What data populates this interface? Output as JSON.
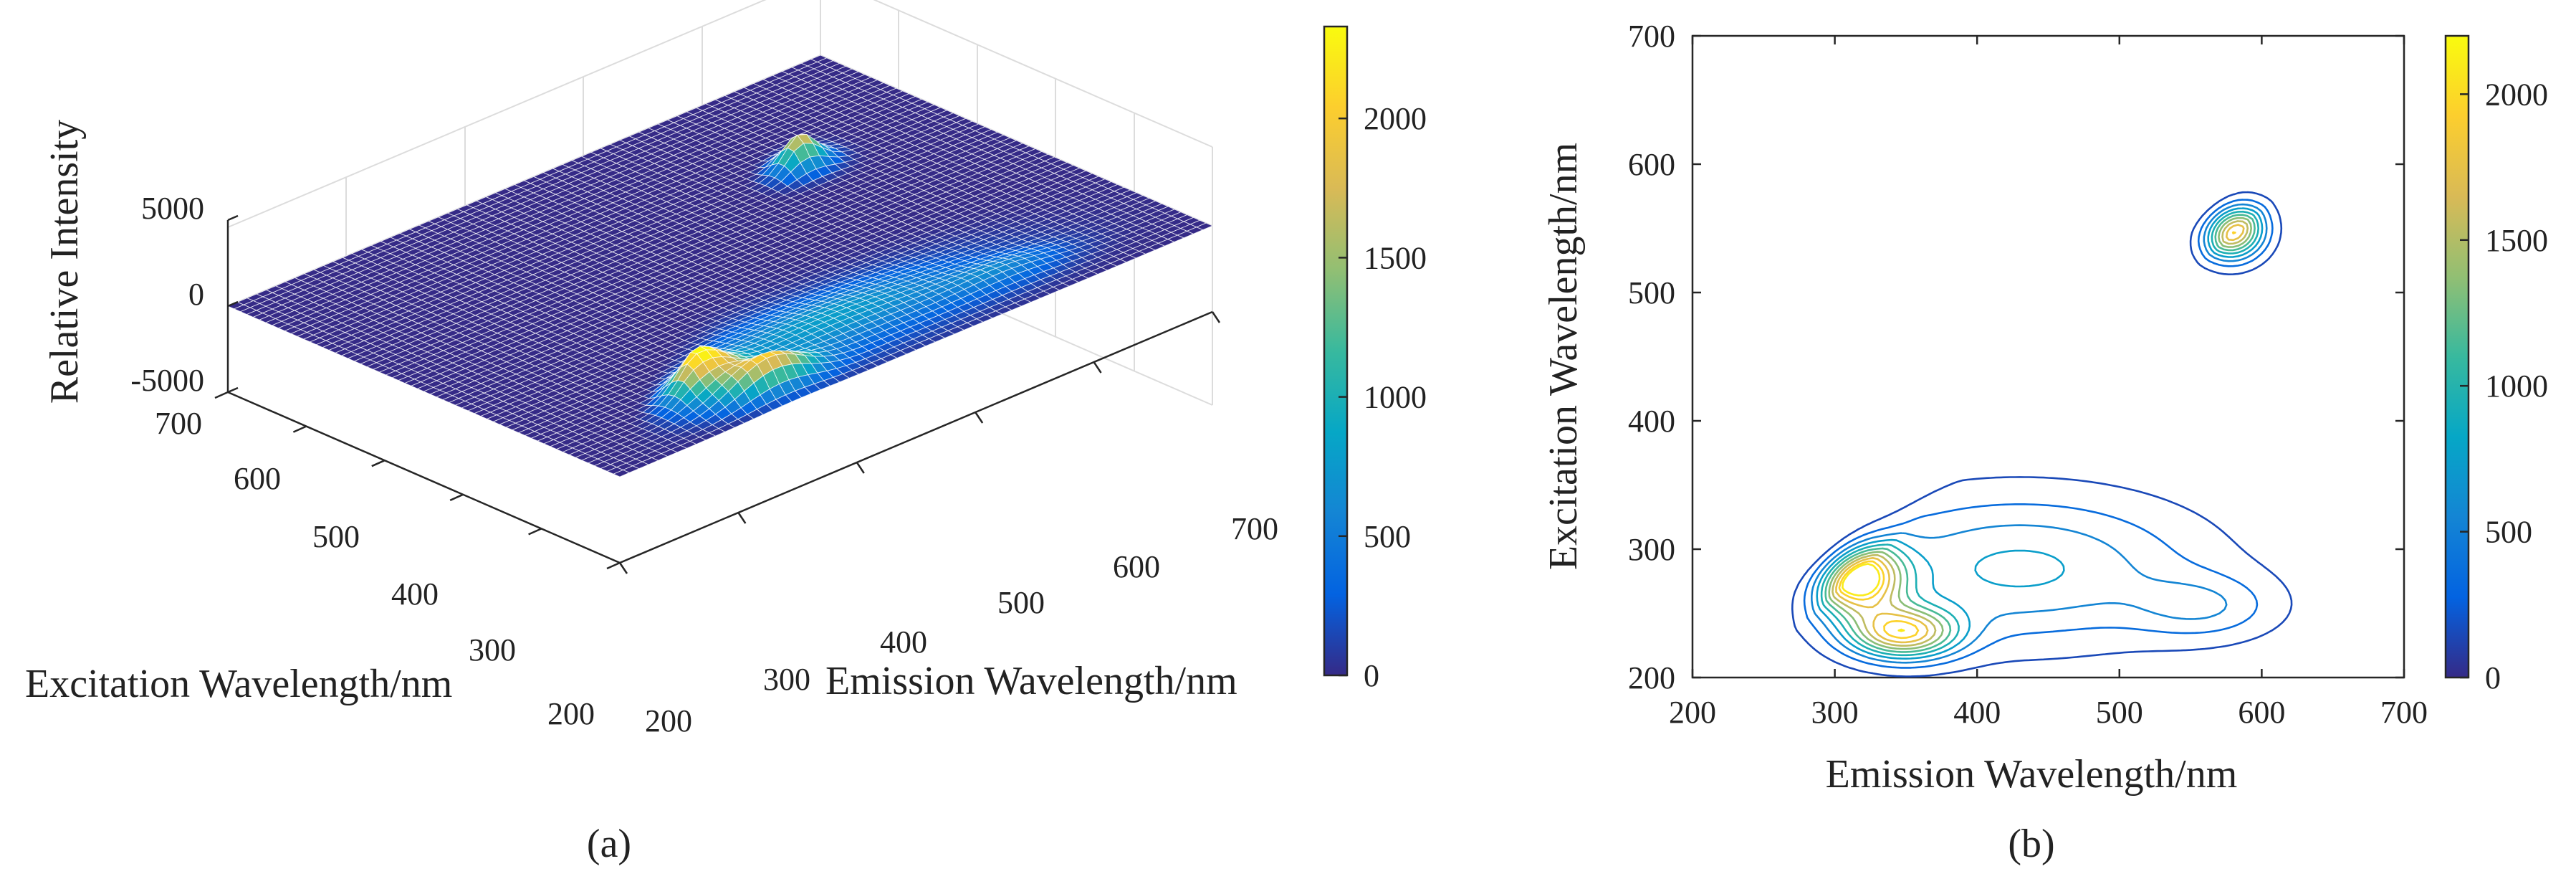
{
  "chart_data": [
    {
      "type": "surface",
      "panel_label": "(a)",
      "title": "",
      "xlabel": "Emission Wavelength/nm",
      "ylabel": "Excitation Wavelength/nm",
      "zlabel": "Relative Intensity",
      "x_ticks": [
        "200",
        "300",
        "400",
        "500",
        "600",
        "700"
      ],
      "y_ticks": [
        "200",
        "300",
        "400",
        "500",
        "600",
        "700"
      ],
      "z_ticks": [
        "-5000",
        "0",
        "5000"
      ],
      "xlim": [
        200,
        700
      ],
      "ylim": [
        200,
        700
      ],
      "zlim": [
        -5000,
        5000
      ],
      "colorbar": {
        "ticks": [
          "0",
          "500",
          "1000",
          "1500",
          "2000"
        ],
        "range": [
          0,
          2330
        ]
      },
      "peaks": [
        {
          "em": 315,
          "ex": 278,
          "intensity": 2200
        },
        {
          "em": 348,
          "ex": 235,
          "intensity": 1800
        },
        {
          "em": 578,
          "ex": 550,
          "intensity": 2100
        }
      ]
    },
    {
      "type": "contour",
      "panel_label": "(b)",
      "title": "",
      "xlabel": "Emission Wavelength/nm",
      "ylabel": "Excitation Wavelength/nm",
      "x_ticks": [
        "200",
        "300",
        "400",
        "500",
        "600",
        "700"
      ],
      "y_ticks": [
        "200",
        "300",
        "400",
        "500",
        "600",
        "700"
      ],
      "xlim": [
        200,
        700
      ],
      "ylim": [
        200,
        700
      ],
      "colorbar": {
        "ticks": [
          "0",
          "500",
          "1000",
          "1500",
          "2000"
        ],
        "range": [
          0,
          2200
        ]
      },
      "contour_levels": [
        150,
        350,
        550,
        750,
        950,
        1150,
        1350,
        1550,
        1750,
        1950,
        2100
      ],
      "peaks": [
        {
          "em": 315,
          "ex": 278,
          "intensity": 2200
        },
        {
          "em": 348,
          "ex": 235,
          "intensity": 1800
        },
        {
          "em": 578,
          "ex": 550,
          "intensity": 2100
        }
      ]
    }
  ]
}
